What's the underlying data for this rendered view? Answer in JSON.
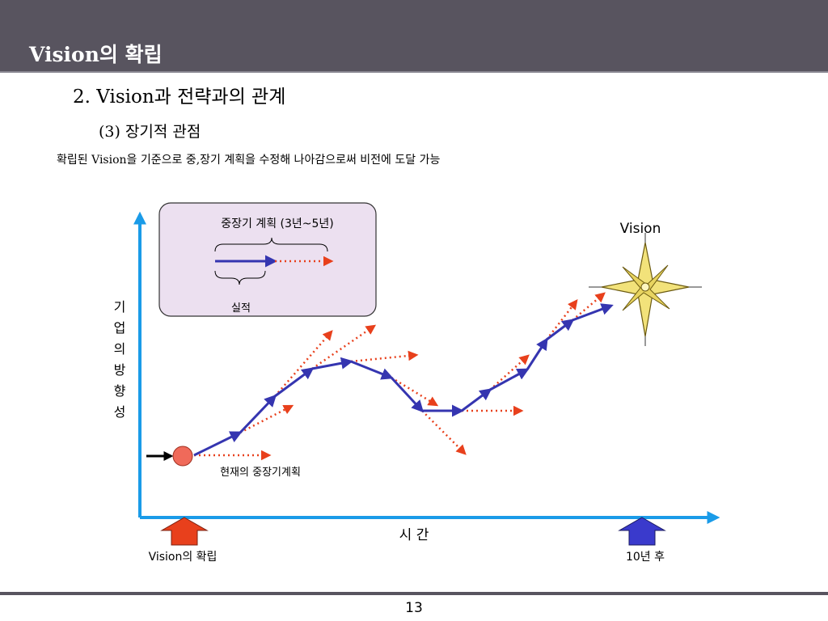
{
  "slide": {
    "header_title": "Vision의 확립",
    "heading": "2. Vision과 전략과의 관계",
    "subheading": "(3) 장기적 관점",
    "description": "확립된 Vision을 기준으로 중,장기 계획을 수정해 나아감으로써 비전에 도달 가능",
    "page_number": "13"
  },
  "diagram": {
    "legend": {
      "title": "중장기 계획 (3년~5년)",
      "actual_label": "실적"
    },
    "y_axis_label": "기업의방향성",
    "x_axis_label": "시 간",
    "vision_label": "Vision",
    "current_plan_label": "현재의 중장기계획",
    "start_label": "Vision의 확립",
    "end_label": "10년 후",
    "colors": {
      "actual_line": "#3535b0",
      "plan_line": "#e8401c",
      "axis": "#1a9be8",
      "start_circle": "#f06a5a",
      "start_arrow": "#e8401c",
      "end_arrow": "#3a3acc",
      "legend_box": "#ece0f0",
      "compass_star": "#f2e27a"
    }
  }
}
